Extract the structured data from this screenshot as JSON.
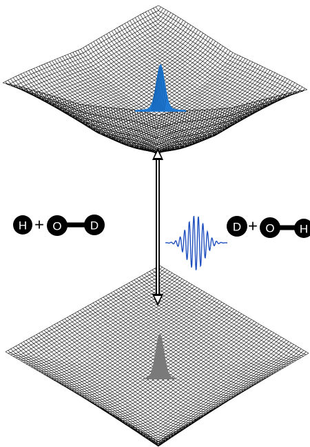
{
  "reactants": {
    "atom1": "H",
    "plus": "+",
    "atom2": "O",
    "atom3": "D"
  },
  "products": {
    "atom1": "D",
    "plus": "+",
    "atom2": "O",
    "atom3": "H"
  },
  "colors": {
    "mesh": "#000000",
    "upper_wavepacket": "#1f78d1",
    "lower_wavepacket": "#7a7a7a",
    "laser_pulse": "#1f4fbf",
    "atom_fill": "#000000",
    "atom_text": "#ffffff"
  },
  "icons": {
    "transition": "double-headed-arrow-icon",
    "laser": "laser-pulse-icon"
  }
}
